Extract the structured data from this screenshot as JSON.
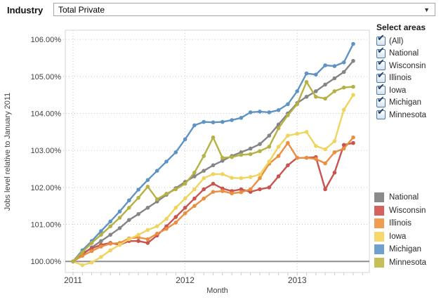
{
  "header": {
    "industry_label": "Industry",
    "industry_value": "Total Private",
    "dropdown_arrow": "▼"
  },
  "filters": {
    "title": "Select areas",
    "check_glyph": "✔",
    "items": [
      {
        "label": "(All)",
        "checked": true
      },
      {
        "label": "National",
        "checked": true
      },
      {
        "label": "Wisconsin",
        "checked": true
      },
      {
        "label": "Illinois",
        "checked": true
      },
      {
        "label": "Iowa",
        "checked": true
      },
      {
        "label": "Michigan",
        "checked": true
      },
      {
        "label": "Minnesota",
        "checked": true
      }
    ]
  },
  "legend": {
    "items": [
      {
        "label": "National",
        "color": "#8b8b8b"
      },
      {
        "label": "Wisconsin",
        "color": "#d4635f"
      },
      {
        "label": "Illinois",
        "color": "#f09d51"
      },
      {
        "label": "Iowa",
        "color": "#f5d96d"
      },
      {
        "label": "Michigan",
        "color": "#6fa1cc"
      },
      {
        "label": "Minnesota",
        "color": "#c5bf56"
      }
    ]
  },
  "chart_data": {
    "type": "line",
    "title": "",
    "xlabel": "Month",
    "ylabel": "Jobs level relative to January 2011",
    "x_start": "2011-01",
    "x_ticks": [
      {
        "label": "2011",
        "month_index": 0
      },
      {
        "label": "2012",
        "month_index": 12
      },
      {
        "label": "2013",
        "month_index": 24
      }
    ],
    "y_ticks": [
      "100.00%",
      "101.00%",
      "102.00%",
      "103.00%",
      "104.00%",
      "105.00%",
      "106.00%"
    ],
    "ylim": [
      99.7,
      106.25
    ],
    "baseline": 100,
    "grid": true,
    "legend_position": "bottom-right",
    "series": [
      {
        "name": "National",
        "color": "#858585",
        "values": [
          100.0,
          100.18,
          100.38,
          100.55,
          100.72,
          100.9,
          101.12,
          101.28,
          101.45,
          101.62,
          101.8,
          101.98,
          102.15,
          102.3,
          102.45,
          102.6,
          102.72,
          102.85,
          102.95,
          103.05,
          103.17,
          103.4,
          103.7,
          104.0,
          104.28,
          104.45,
          104.6,
          104.78,
          104.95,
          105.12,
          105.42
        ]
      },
      {
        "name": "Wisconsin",
        "color": "#c9534f",
        "values": [
          100.0,
          100.22,
          100.35,
          100.45,
          100.5,
          100.45,
          100.55,
          100.55,
          100.5,
          100.7,
          100.95,
          101.2,
          101.45,
          101.7,
          101.95,
          102.1,
          101.97,
          101.9,
          101.95,
          101.88,
          101.95,
          102.0,
          102.3,
          102.6,
          102.8,
          102.8,
          102.82,
          101.95,
          102.4,
          103.15,
          103.2
        ]
      },
      {
        "name": "Illinois",
        "color": "#e98f3f",
        "values": [
          100.0,
          100.15,
          100.28,
          100.4,
          100.48,
          100.5,
          100.62,
          100.65,
          100.6,
          100.75,
          100.88,
          101.05,
          101.3,
          101.5,
          101.7,
          101.88,
          101.9,
          101.84,
          101.87,
          101.95,
          102.25,
          102.64,
          102.85,
          103.2,
          102.8,
          102.8,
          102.77,
          102.65,
          102.95,
          103.05,
          103.35
        ]
      },
      {
        "name": "Iowa",
        "color": "#efd45f",
        "values": [
          100.0,
          99.9,
          99.97,
          100.12,
          100.3,
          100.45,
          100.6,
          100.72,
          100.85,
          100.95,
          101.15,
          101.45,
          101.7,
          101.95,
          102.25,
          102.36,
          102.36,
          102.26,
          102.25,
          102.28,
          102.35,
          102.7,
          103.1,
          103.4,
          103.45,
          103.5,
          103.12,
          103.03,
          103.25,
          104.1,
          104.5
        ]
      },
      {
        "name": "Michigan",
        "color": "#5e93c4",
        "values": [
          100.0,
          100.3,
          100.55,
          100.82,
          101.08,
          101.35,
          101.65,
          101.94,
          102.2,
          102.45,
          102.7,
          102.95,
          103.3,
          103.68,
          103.77,
          103.76,
          103.77,
          103.82,
          103.88,
          104.03,
          104.05,
          104.03,
          104.09,
          104.25,
          104.6,
          105.08,
          105.05,
          105.3,
          105.28,
          105.38,
          105.88
        ]
      },
      {
        "name": "Minnesota",
        "color": "#b6b145",
        "values": [
          100.0,
          100.25,
          100.5,
          100.72,
          100.95,
          101.18,
          101.45,
          101.72,
          102.02,
          101.68,
          101.83,
          101.95,
          102.1,
          102.4,
          102.85,
          103.35,
          102.8,
          102.82,
          102.88,
          102.9,
          102.98,
          103.1,
          103.6,
          103.95,
          104.25,
          104.85,
          104.45,
          104.4,
          104.6,
          104.7,
          104.72
        ]
      }
    ]
  }
}
